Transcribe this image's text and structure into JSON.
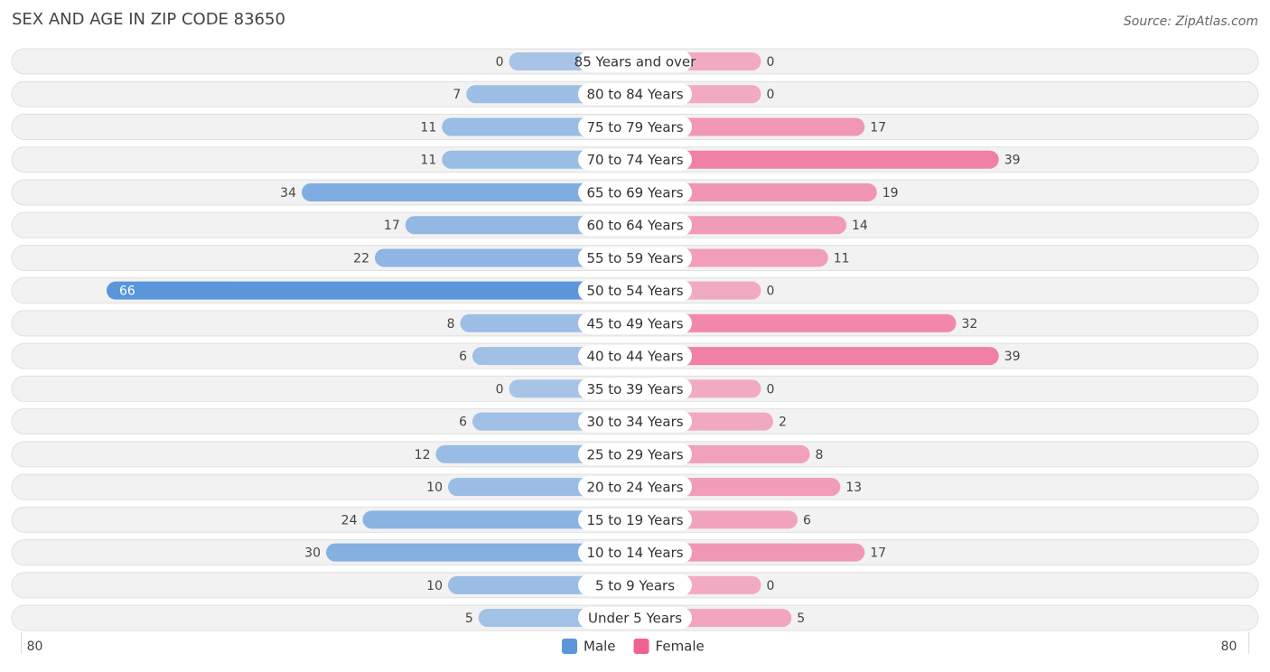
{
  "chart_data": {
    "type": "pyramid",
    "title": "SEX AND AGE IN ZIP CODE 83650",
    "source": "Source: ZipAtlas.com",
    "categories": [
      "85 Years and over",
      "80 to 84 Years",
      "75 to 79 Years",
      "70 to 74 Years",
      "65 to 69 Years",
      "60 to 64 Years",
      "55 to 59 Years",
      "50 to 54 Years",
      "45 to 49 Years",
      "40 to 44 Years",
      "35 to 39 Years",
      "30 to 34 Years",
      "25 to 29 Years",
      "20 to 24 Years",
      "15 to 19 Years",
      "10 to 14 Years",
      "5 to 9 Years",
      "Under 5 Years"
    ],
    "series": [
      {
        "name": "Male",
        "color": "#5b96db",
        "values": [
          0,
          7,
          11,
          11,
          34,
          17,
          22,
          66,
          8,
          6,
          0,
          6,
          12,
          10,
          24,
          30,
          10,
          5
        ]
      },
      {
        "name": "Female",
        "color": "#f06292",
        "values": [
          0,
          0,
          17,
          39,
          19,
          14,
          11,
          0,
          32,
          39,
          0,
          2,
          8,
          13,
          6,
          17,
          0,
          5
        ]
      }
    ],
    "xlim": [
      0,
      80
    ],
    "xticks": [
      80
    ]
  }
}
